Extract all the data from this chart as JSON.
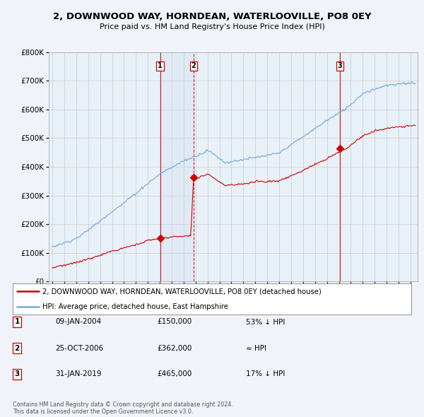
{
  "title": "2, DOWNWOOD WAY, HORNDEAN, WATERLOOVILLE, PO8 0EY",
  "subtitle": "Price paid vs. HM Land Registry's House Price Index (HPI)",
  "legend_line1": "2, DOWNWOOD WAY, HORNDEAN, WATERLOOVILLE, PO8 0EY (detached house)",
  "legend_line2": "HPI: Average price, detached house, East Hampshire",
  "sale_dates": [
    2004.03,
    2006.82,
    2019.08
  ],
  "sale_prices": [
    150000,
    362000,
    465000
  ],
  "sale_labels": [
    "1",
    "2",
    "3"
  ],
  "vline_styles": [
    "solid",
    "dashed",
    "solid"
  ],
  "table_rows": [
    [
      "1",
      "09-JAN-2004",
      "£150,000",
      "53% ↓ HPI"
    ],
    [
      "2",
      "25-OCT-2006",
      "£362,000",
      "≈ HPI"
    ],
    [
      "3",
      "31-JAN-2019",
      "£465,000",
      "17% ↓ HPI"
    ]
  ],
  "footer": "Contains HM Land Registry data © Crown copyright and database right 2024.\nThis data is licensed under the Open Government Licence v3.0.",
  "ylim": [
    0,
    800000
  ],
  "yticks": [
    0,
    100000,
    200000,
    300000,
    400000,
    500000,
    600000,
    700000,
    800000
  ],
  "hpi_color": "#6fa8dc",
  "price_color": "#cc0000",
  "vline_color": "#cc0000",
  "bg_color": "#f0f4fa",
  "plot_bg": "#e8f0f8",
  "grid_color": "#cccccc",
  "shade_color": "#dce8f5"
}
